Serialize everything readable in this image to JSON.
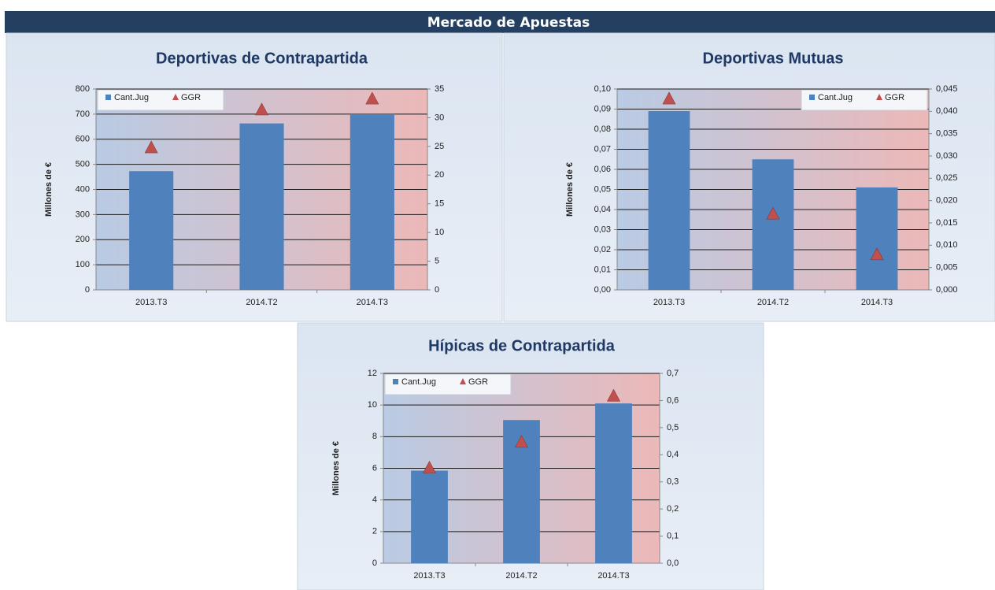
{
  "header": {
    "title": "Mercado de Apuestas"
  },
  "chart_data": [
    {
      "type": "bar",
      "title": "Deportivas de Contrapartida",
      "ylabel": "Millones de €",
      "categories": [
        "2013.T3",
        "2014.T2",
        "2014.T3"
      ],
      "series": [
        {
          "name": "Cant.Jug",
          "color": "#4f81bd",
          "type": "bar",
          "values": [
            473,
            663,
            700
          ]
        },
        {
          "name": "GGR",
          "color": "#c0504d",
          "type": "triangle",
          "axis": "y2",
          "values": [
            24.7,
            31.3,
            33.2
          ]
        }
      ],
      "ylim": [
        0,
        800
      ],
      "yticks": [
        0,
        100,
        200,
        300,
        400,
        500,
        600,
        700,
        800
      ],
      "y2lim": [
        0,
        35
      ],
      "y2ticks": [
        0,
        5,
        10,
        15,
        20,
        25,
        30,
        35
      ],
      "grid": true,
      "legend": "upper left"
    },
    {
      "type": "bar",
      "title": "Deportivas Mutuas",
      "ylabel": "Millones de €",
      "categories": [
        "2013.T3",
        "2014.T2",
        "2014.T3"
      ],
      "series": [
        {
          "name": "Cant.Jug",
          "color": "#4f81bd",
          "type": "bar",
          "values": [
            0.089,
            0.065,
            0.051
          ]
        },
        {
          "name": "GGR",
          "color": "#c0504d",
          "type": "triangle",
          "axis": "y2",
          "values": [
            0.0427,
            0.0169,
            0.0078
          ]
        }
      ],
      "ylim": [
        0,
        0.1
      ],
      "yticks": [
        {
          "value": 0,
          "label": "0,00"
        },
        {
          "value": 0.01,
          "label": "0,01"
        },
        {
          "value": 0.02,
          "label": "0,02"
        },
        {
          "value": 0.03,
          "label": "0,03"
        },
        {
          "value": 0.04,
          "label": "0,04"
        },
        {
          "value": 0.05,
          "label": "0,05"
        },
        {
          "value": 0.06,
          "label": "0,06"
        },
        {
          "value": 0.07,
          "label": "0,07"
        },
        {
          "value": 0.08,
          "label": "0,08"
        },
        {
          "value": 0.09,
          "label": "0,09"
        },
        {
          "value": 0.1,
          "label": "0,10"
        }
      ],
      "y2lim": [
        0,
        0.045
      ],
      "y2ticks": [
        {
          "value": 0,
          "label": "0,000"
        },
        {
          "value": 0.005,
          "label": "0,005"
        },
        {
          "value": 0.01,
          "label": "0,010"
        },
        {
          "value": 0.015,
          "label": "0,015"
        },
        {
          "value": 0.02,
          "label": "0,020"
        },
        {
          "value": 0.025,
          "label": "0,025"
        },
        {
          "value": 0.03,
          "label": "0,030"
        },
        {
          "value": 0.035,
          "label": "0,035"
        },
        {
          "value": 0.04,
          "label": "0,040"
        },
        {
          "value": 0.045,
          "label": "0,045"
        }
      ],
      "grid": true,
      "legend": "upper right"
    },
    {
      "type": "bar",
      "title": "Hípicas de Contrapartida",
      "ylabel": "Millones de €",
      "categories": [
        "2013.T3",
        "2014.T2",
        "2014.T3"
      ],
      "series": [
        {
          "name": "Cant.Jug",
          "color": "#4f81bd",
          "type": "bar",
          "values": [
            5.85,
            9.05,
            10.1
          ]
        },
        {
          "name": "GGR",
          "color": "#c0504d",
          "type": "triangle",
          "axis": "y2",
          "values": [
            0.35,
            0.445,
            0.615
          ]
        }
      ],
      "ylim": [
        0,
        12
      ],
      "yticks": [
        0,
        2,
        4,
        6,
        8,
        10,
        12
      ],
      "y2lim": [
        0,
        0.7
      ],
      "y2ticks": [
        {
          "value": 0,
          "label": "0,0"
        },
        {
          "value": 0.1,
          "label": "0,1"
        },
        {
          "value": 0.2,
          "label": "0,2"
        },
        {
          "value": 0.3,
          "label": "0,3"
        },
        {
          "value": 0.4,
          "label": "0,4"
        },
        {
          "value": 0.5,
          "label": "0,5"
        },
        {
          "value": 0.6,
          "label": "0,6"
        },
        {
          "value": 0.7,
          "label": "0,7"
        }
      ],
      "grid": true,
      "legend": "upper left"
    }
  ]
}
